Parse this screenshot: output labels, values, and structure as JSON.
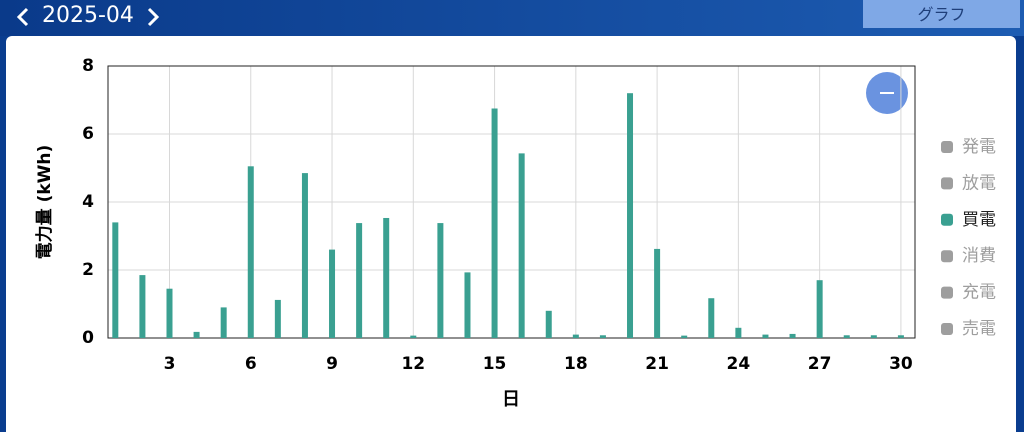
{
  "header": {
    "month": "2025-04",
    "button": "グラフ"
  },
  "chart_data": {
    "type": "bar",
    "y_label": "電力量 (kWh)",
    "x_label": "日",
    "x": [
      1,
      2,
      3,
      4,
      5,
      6,
      7,
      8,
      9,
      10,
      11,
      12,
      13,
      14,
      15,
      16,
      17,
      18,
      19,
      20,
      21,
      22,
      23,
      24,
      25,
      26,
      27,
      28,
      29,
      30
    ],
    "series": [
      {
        "name": "買電",
        "color": "#3aa091",
        "values": [
          3.4,
          1.85,
          1.45,
          0.18,
          0.9,
          5.05,
          1.12,
          4.85,
          2.6,
          3.38,
          3.53,
          0.07,
          3.38,
          1.93,
          6.75,
          5.43,
          0.8,
          0.1,
          0.08,
          7.2,
          2.62,
          0.07,
          1.17,
          0.3,
          0.1,
          0.12,
          1.7,
          0.08,
          0.08,
          0.08
        ]
      }
    ],
    "legend_items": [
      "発電",
      "放電",
      "買電",
      "消費",
      "充電",
      "売電"
    ],
    "legend_inactive_color": "#9e9e9e",
    "xlim": [
      0.73,
      30.52
    ],
    "xticks": [
      3,
      6,
      9,
      12,
      15,
      18,
      21,
      24,
      27,
      30
    ],
    "ylim": [
      0,
      8
    ],
    "yticks": [
      0,
      2,
      4,
      6,
      8
    ],
    "grid": true
  }
}
